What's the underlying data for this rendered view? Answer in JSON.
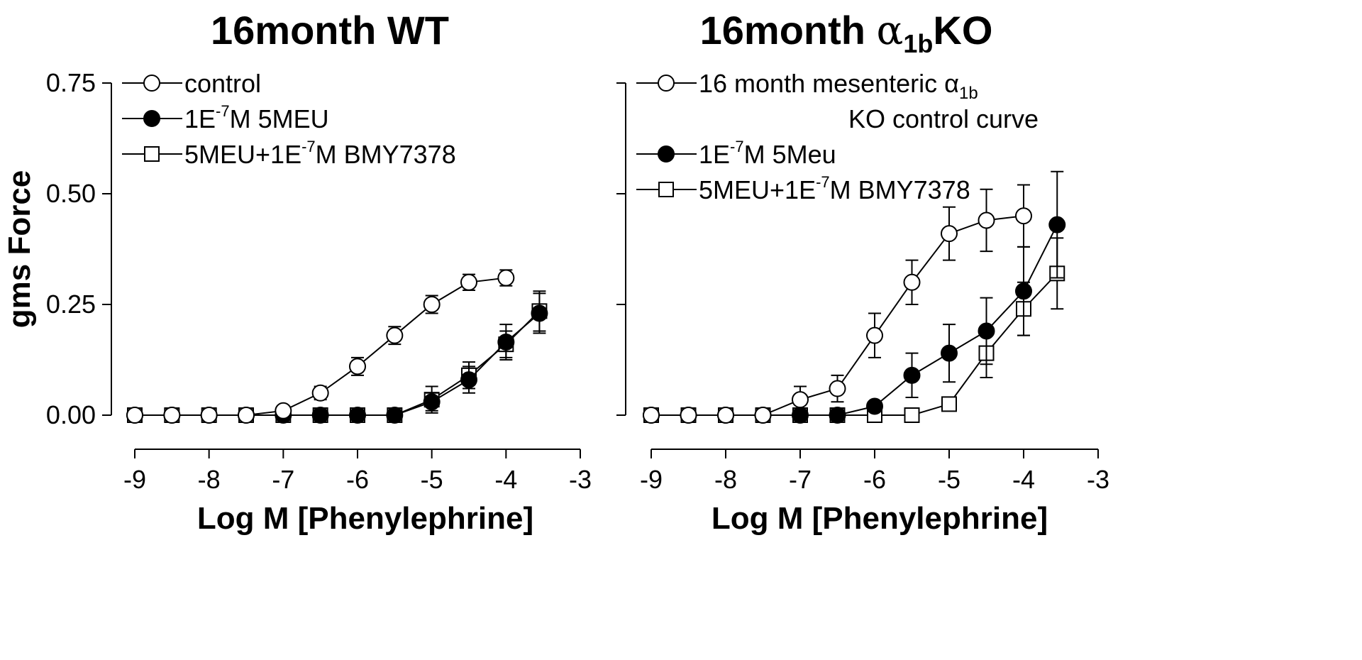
{
  "chart_data": [
    {
      "type": "line",
      "title": "16month WT",
      "title_parts": {
        "main": "16month WT",
        "alpha": "",
        "sub": "",
        "suffix": ""
      },
      "xlabel": "Log M [Phenylephrine]",
      "ylabel": "gms Force",
      "xlim": [
        -9,
        -3
      ],
      "ylim": [
        0,
        0.75
      ],
      "xticks": [
        "-9",
        "-8",
        "-7",
        "-6",
        "-5",
        "-4",
        "-3"
      ],
      "yticks": [
        "0.00",
        "0.25",
        "0.50",
        "0.75"
      ],
      "y_tick_labels_shown": true,
      "legend_position": "top-left",
      "series": [
        {
          "name": "control",
          "legend": {
            "line1": "control",
            "line2": "",
            "pre": "",
            "sup": "",
            "post": ""
          },
          "marker": "open-circle",
          "x": [
            -9,
            -8.5,
            -8,
            -7.5,
            -7,
            -6.5,
            -6,
            -5.5,
            -5,
            -4.5,
            -4
          ],
          "y": [
            0,
            0,
            0,
            0,
            0.01,
            0.05,
            0.11,
            0.18,
            0.25,
            0.3,
            0.31
          ],
          "err": [
            0,
            0,
            0,
            0,
            0.005,
            0.015,
            0.02,
            0.02,
            0.02,
            0.018,
            0.018
          ]
        },
        {
          "name": "1E-7M 5MEU",
          "legend": {
            "line1": "",
            "line2": "",
            "pre": "1E",
            "sup": "-7",
            "post": "M 5MEU"
          },
          "marker": "filled-circle",
          "x": [
            -9,
            -8.5,
            -8,
            -7.5,
            -7,
            -6.5,
            -6,
            -5.5,
            -5,
            -4.5,
            -4,
            -3.55
          ],
          "y": [
            0,
            0,
            0,
            0,
            0,
            0,
            0,
            0,
            0.03,
            0.08,
            0.165,
            0.23
          ],
          "err": [
            0,
            0,
            0,
            0,
            0,
            0,
            0,
            0,
            0.02,
            0.03,
            0.04,
            0.045
          ]
        },
        {
          "name": "5MEU+1E-7M BMY7378",
          "legend": {
            "line1": "",
            "line2": "",
            "pre": "5MEU+1E",
            "sup": "-7",
            "post": "M BMY7378"
          },
          "marker": "open-square",
          "x": [
            -9,
            -8.5,
            -8,
            -7.5,
            -7,
            -6.5,
            -6,
            -5.5,
            -5,
            -4.5,
            -4,
            -3.55
          ],
          "y": [
            0,
            0,
            0,
            0,
            0,
            0,
            0,
            0,
            0.035,
            0.09,
            0.16,
            0.235
          ],
          "err": [
            0,
            0,
            0,
            0,
            0,
            0,
            0,
            0,
            0.03,
            0.03,
            0.03,
            0.045
          ]
        }
      ]
    },
    {
      "type": "line",
      "title": "16month α1bKO",
      "title_parts": {
        "main": "16month ",
        "alpha": "α",
        "sub": "1b",
        "suffix": "KO"
      },
      "xlabel": "Log M [Phenylephrine]",
      "ylabel": "",
      "xlim": [
        -9,
        -3
      ],
      "ylim": [
        0,
        0.75
      ],
      "xticks": [
        "-9",
        "-8",
        "-7",
        "-6",
        "-5",
        "-4",
        "-3"
      ],
      "yticks": [
        "",
        "",
        "",
        ""
      ],
      "y_tick_labels_shown": false,
      "legend_position": "top-left",
      "series": [
        {
          "name": "16 month mesenteric α1b KO control curve",
          "legend": {
            "line1": "16 month mesenteric α",
            "line1_sub": "1b",
            "line2": "KO control curve",
            "pre": "",
            "sup": "",
            "post": ""
          },
          "marker": "open-circle",
          "x": [
            -9,
            -8.5,
            -8,
            -7.5,
            -7,
            -6.5,
            -6,
            -5.5,
            -5,
            -4.5,
            -4
          ],
          "y": [
            0,
            0,
            0,
            0,
            0.035,
            0.06,
            0.18,
            0.3,
            0.41,
            0.44,
            0.45
          ],
          "err": [
            0,
            0,
            0,
            0,
            0.03,
            0.03,
            0.05,
            0.05,
            0.06,
            0.07,
            0.07
          ]
        },
        {
          "name": "1E-7M 5Meu",
          "legend": {
            "line1": "",
            "line2": "",
            "pre": "1E",
            "sup": "-7",
            "post": "M 5Meu"
          },
          "marker": "filled-circle",
          "x": [
            -9,
            -8.5,
            -8,
            -7.5,
            -7,
            -6.5,
            -6,
            -5.5,
            -5,
            -4.5,
            -4,
            -3.55
          ],
          "y": [
            0,
            0,
            0,
            0,
            0,
            0,
            0.02,
            0.09,
            0.14,
            0.19,
            0.28,
            0.43
          ],
          "err": [
            0,
            0,
            0,
            0,
            0,
            0,
            0,
            0.05,
            0.065,
            0.075,
            0.1,
            0.12
          ]
        },
        {
          "name": "5MEU+1E-7M BMY7378",
          "legend": {
            "line1": "",
            "line2": "",
            "pre": "5MEU+1E",
            "sup": "-7",
            "post": "M BMY7378"
          },
          "marker": "open-square",
          "x": [
            -9,
            -8.5,
            -8,
            -7.5,
            -7,
            -6.5,
            -6,
            -5.5,
            -5,
            -4.5,
            -4,
            -3.55
          ],
          "y": [
            0,
            0,
            0,
            0,
            0,
            0,
            0,
            0,
            0.025,
            0.14,
            0.24,
            0.32
          ],
          "err": [
            0,
            0,
            0,
            0,
            0,
            0,
            0,
            0,
            0,
            0.055,
            0.06,
            0.08
          ]
        }
      ]
    }
  ]
}
